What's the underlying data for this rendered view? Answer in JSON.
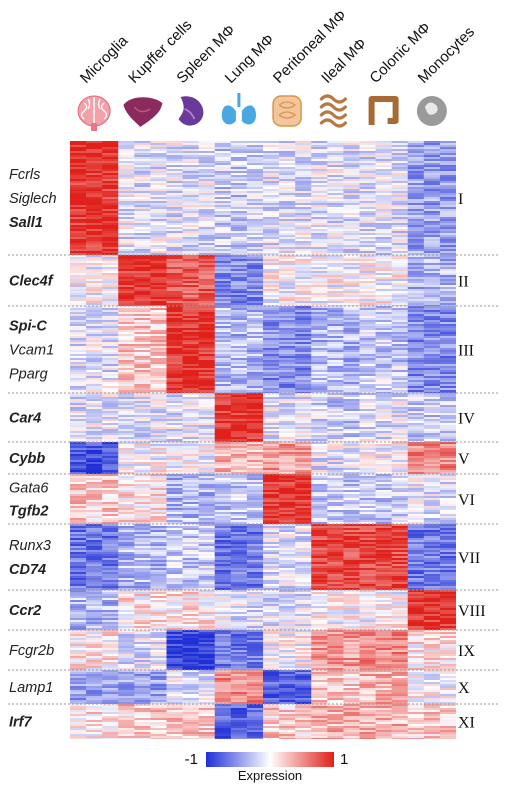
{
  "chart_data": {
    "type": "heatmap",
    "columns": [
      "Microglia",
      "Kupffer cells",
      "Spleen MΦ",
      "Lung MΦ",
      "Peritoneal MΦ",
      "Ileal MΦ",
      "Colonic MΦ",
      "Monocytes"
    ],
    "column_icons": [
      "brain-icon",
      "liver-icon",
      "spleen-icon",
      "lung-icon",
      "peritoneum-icon",
      "ileum-icon",
      "colon-icon",
      "monocyte-icon"
    ],
    "clusters": [
      {
        "label": "I",
        "genes": [
          {
            "name": "Fcrls",
            "bold": false
          },
          {
            "name": "Siglech",
            "bold": false
          },
          {
            "name": "Sall1",
            "bold": true
          }
        ],
        "mean_expression": [
          0.9,
          -0.1,
          -0.1,
          -0.2,
          -0.1,
          -0.1,
          -0.1,
          -0.4
        ]
      },
      {
        "label": "II",
        "genes": [
          {
            "name": "Clec4f",
            "bold": true
          }
        ],
        "mean_expression": [
          0.0,
          0.9,
          0.7,
          -0.5,
          0.0,
          0.0,
          0.0,
          -0.3
        ]
      },
      {
        "label": "III",
        "genes": [
          {
            "name": "Spi-C",
            "bold": true
          },
          {
            "name": "Vcam1",
            "bold": false
          },
          {
            "name": "Pparg",
            "bold": false
          }
        ],
        "mean_expression": [
          -0.1,
          0.2,
          0.9,
          -0.3,
          -0.5,
          -0.3,
          -0.2,
          -0.5
        ]
      },
      {
        "label": "IV",
        "genes": [
          {
            "name": "Car4",
            "bold": true
          }
        ],
        "mean_expression": [
          -0.1,
          -0.1,
          -0.1,
          0.9,
          -0.1,
          -0.2,
          -0.1,
          -0.2
        ]
      },
      {
        "label": "V",
        "genes": [
          {
            "name": "Cybb",
            "bold": true
          }
        ],
        "mean_expression": [
          -0.8,
          0.0,
          0.0,
          0.3,
          0.4,
          -0.1,
          0.0,
          0.5
        ]
      },
      {
        "label": "VI",
        "genes": [
          {
            "name": "Gata6",
            "bold": false
          },
          {
            "name": "Tgfb2",
            "bold": true
          }
        ],
        "mean_expression": [
          0.2,
          0.1,
          -0.3,
          -0.2,
          0.9,
          -0.2,
          -0.2,
          -0.1
        ]
      },
      {
        "label": "VII",
        "genes": [
          {
            "name": "Runx3",
            "bold": false
          },
          {
            "name": "CD74",
            "bold": true
          }
        ],
        "mean_expression": [
          -0.6,
          -0.3,
          -0.2,
          -0.6,
          -0.1,
          0.8,
          0.8,
          -0.6
        ]
      },
      {
        "label": "VIII",
        "genes": [
          {
            "name": "Ccr2",
            "bold": true
          }
        ],
        "mean_expression": [
          -0.3,
          0.1,
          0.1,
          -0.1,
          -0.1,
          0.0,
          0.0,
          0.9
        ]
      },
      {
        "label": "IX",
        "genes": [
          {
            "name": "Fcgr2b",
            "bold": false
          }
        ],
        "mean_expression": [
          0.1,
          -0.1,
          -0.9,
          -0.6,
          0.0,
          0.4,
          0.5,
          0.1
        ]
      },
      {
        "label": "X",
        "genes": [
          {
            "name": "Lamp1",
            "bold": false
          }
        ],
        "mean_expression": [
          -0.4,
          -0.4,
          -0.1,
          0.5,
          -0.7,
          0.2,
          0.3,
          0.0
        ]
      },
      {
        "label": "XI",
        "genes": [
          {
            "name": "Irf7",
            "bold": true
          }
        ],
        "mean_expression": [
          0.1,
          0.2,
          0.2,
          -0.7,
          0.2,
          0.3,
          0.3,
          0.2
        ]
      }
    ],
    "colorbar": {
      "min": -1,
      "max": 1,
      "title": "Expression",
      "min_label": "-1",
      "max_label": "1",
      "colors": [
        "#1f2fd6",
        "#ffffff",
        "#e0201a"
      ]
    }
  }
}
